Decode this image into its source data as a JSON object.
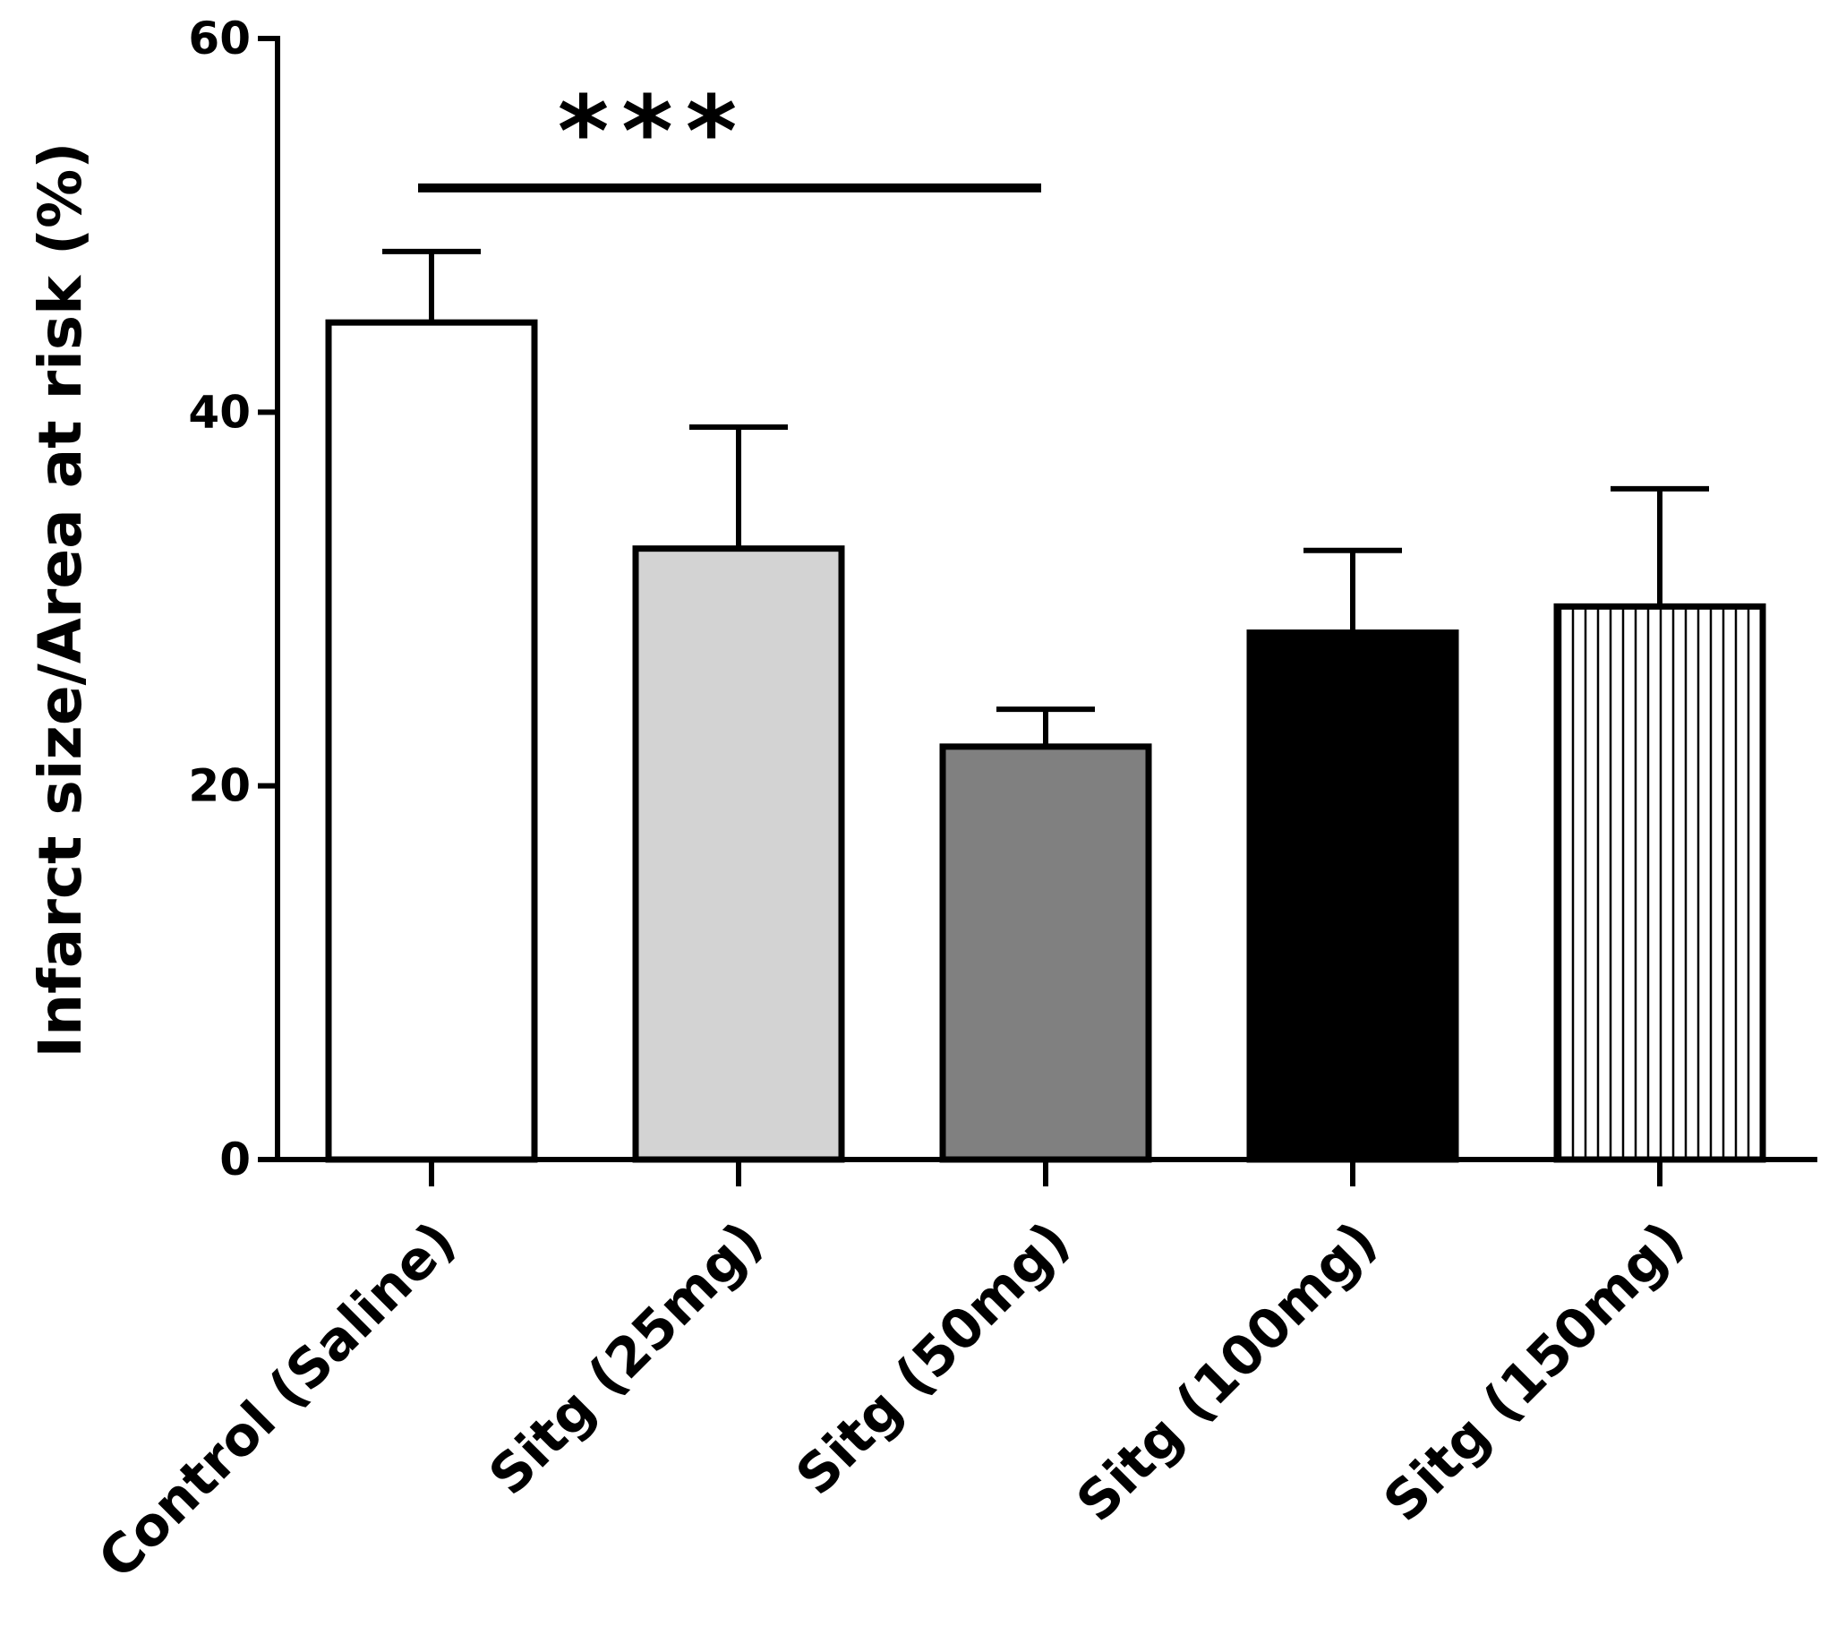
{
  "chart_data": {
    "type": "bar",
    "title": "",
    "xlabel": "",
    "ylabel": "Infarct size/Area at risk (%)",
    "ylim": [
      0,
      60
    ],
    "yticks": [
      0,
      20,
      40,
      60
    ],
    "categories": [
      "Control (Saline)",
      "Sitg (25mg)",
      "Sitg (50mg)",
      "Sitg (100mg)",
      "Sitg (150mg)"
    ],
    "values": [
      44.8,
      32.7,
      22.1,
      28.2,
      29.6
    ],
    "error_upper": [
      48.6,
      39.2,
      24.1,
      32.6,
      35.9
    ],
    "bar_fills": [
      "#ffffff",
      "#d3d3d3",
      "#808080",
      "#000000",
      "stripes"
    ],
    "significance": {
      "label": "***",
      "from_category": 0,
      "to_category": 2,
      "y": 52.0
    }
  }
}
